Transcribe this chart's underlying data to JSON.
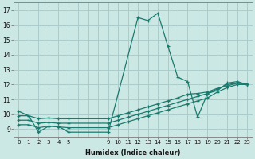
{
  "xlabel": "Humidex (Indice chaleur)",
  "ylabel": "",
  "xlim": [
    -0.5,
    23.5
  ],
  "ylim": [
    8.5,
    17.5
  ],
  "xticks": [
    0,
    1,
    2,
    3,
    4,
    5,
    9,
    10,
    11,
    12,
    13,
    14,
    15,
    16,
    17,
    18,
    19,
    20,
    21,
    22,
    23
  ],
  "yticks": [
    9,
    10,
    11,
    12,
    13,
    14,
    15,
    16,
    17
  ],
  "bg_color": "#cce8e4",
  "grid_color": "#aaccca",
  "line_color": "#1a7a6e",
  "lines": [
    {
      "x": [
        0,
        1,
        2,
        3,
        4,
        5,
        9,
        12,
        13,
        14,
        15,
        16,
        17,
        18,
        19,
        20,
        21,
        22,
        23
      ],
      "y": [
        10.2,
        9.9,
        8.8,
        9.2,
        9.2,
        8.8,
        8.8,
        16.5,
        16.3,
        16.8,
        14.6,
        12.5,
        12.2,
        9.8,
        11.4,
        11.6,
        12.1,
        12.2,
        12.0
      ]
    },
    {
      "x": [
        0,
        1,
        2,
        3,
        4,
        5,
        9,
        10,
        11,
        12,
        13,
        14,
        15,
        16,
        17,
        18,
        19,
        20,
        21,
        22,
        23
      ],
      "y": [
        9.3,
        9.3,
        9.1,
        9.2,
        9.15,
        9.1,
        9.1,
        9.3,
        9.5,
        9.7,
        9.9,
        10.1,
        10.3,
        10.5,
        10.7,
        10.9,
        11.1,
        11.5,
        11.8,
        12.0,
        12.0
      ]
    },
    {
      "x": [
        0,
        1,
        2,
        3,
        4,
        5,
        9,
        10,
        11,
        12,
        13,
        14,
        15,
        16,
        17,
        18,
        19,
        20,
        21,
        22,
        23
      ],
      "y": [
        9.6,
        9.6,
        9.4,
        9.45,
        9.4,
        9.4,
        9.4,
        9.6,
        9.8,
        10.0,
        10.2,
        10.4,
        10.6,
        10.8,
        11.0,
        11.2,
        11.4,
        11.7,
        12.0,
        12.1,
        12.0
      ]
    },
    {
      "x": [
        0,
        1,
        2,
        3,
        4,
        5,
        9,
        10,
        11,
        12,
        13,
        14,
        15,
        16,
        17,
        18,
        19,
        20,
        21,
        22,
        23
      ],
      "y": [
        9.9,
        9.9,
        9.7,
        9.75,
        9.7,
        9.7,
        9.7,
        9.9,
        10.1,
        10.3,
        10.5,
        10.7,
        10.9,
        11.1,
        11.35,
        11.4,
        11.5,
        11.75,
        11.9,
        12.1,
        12.0
      ]
    }
  ]
}
